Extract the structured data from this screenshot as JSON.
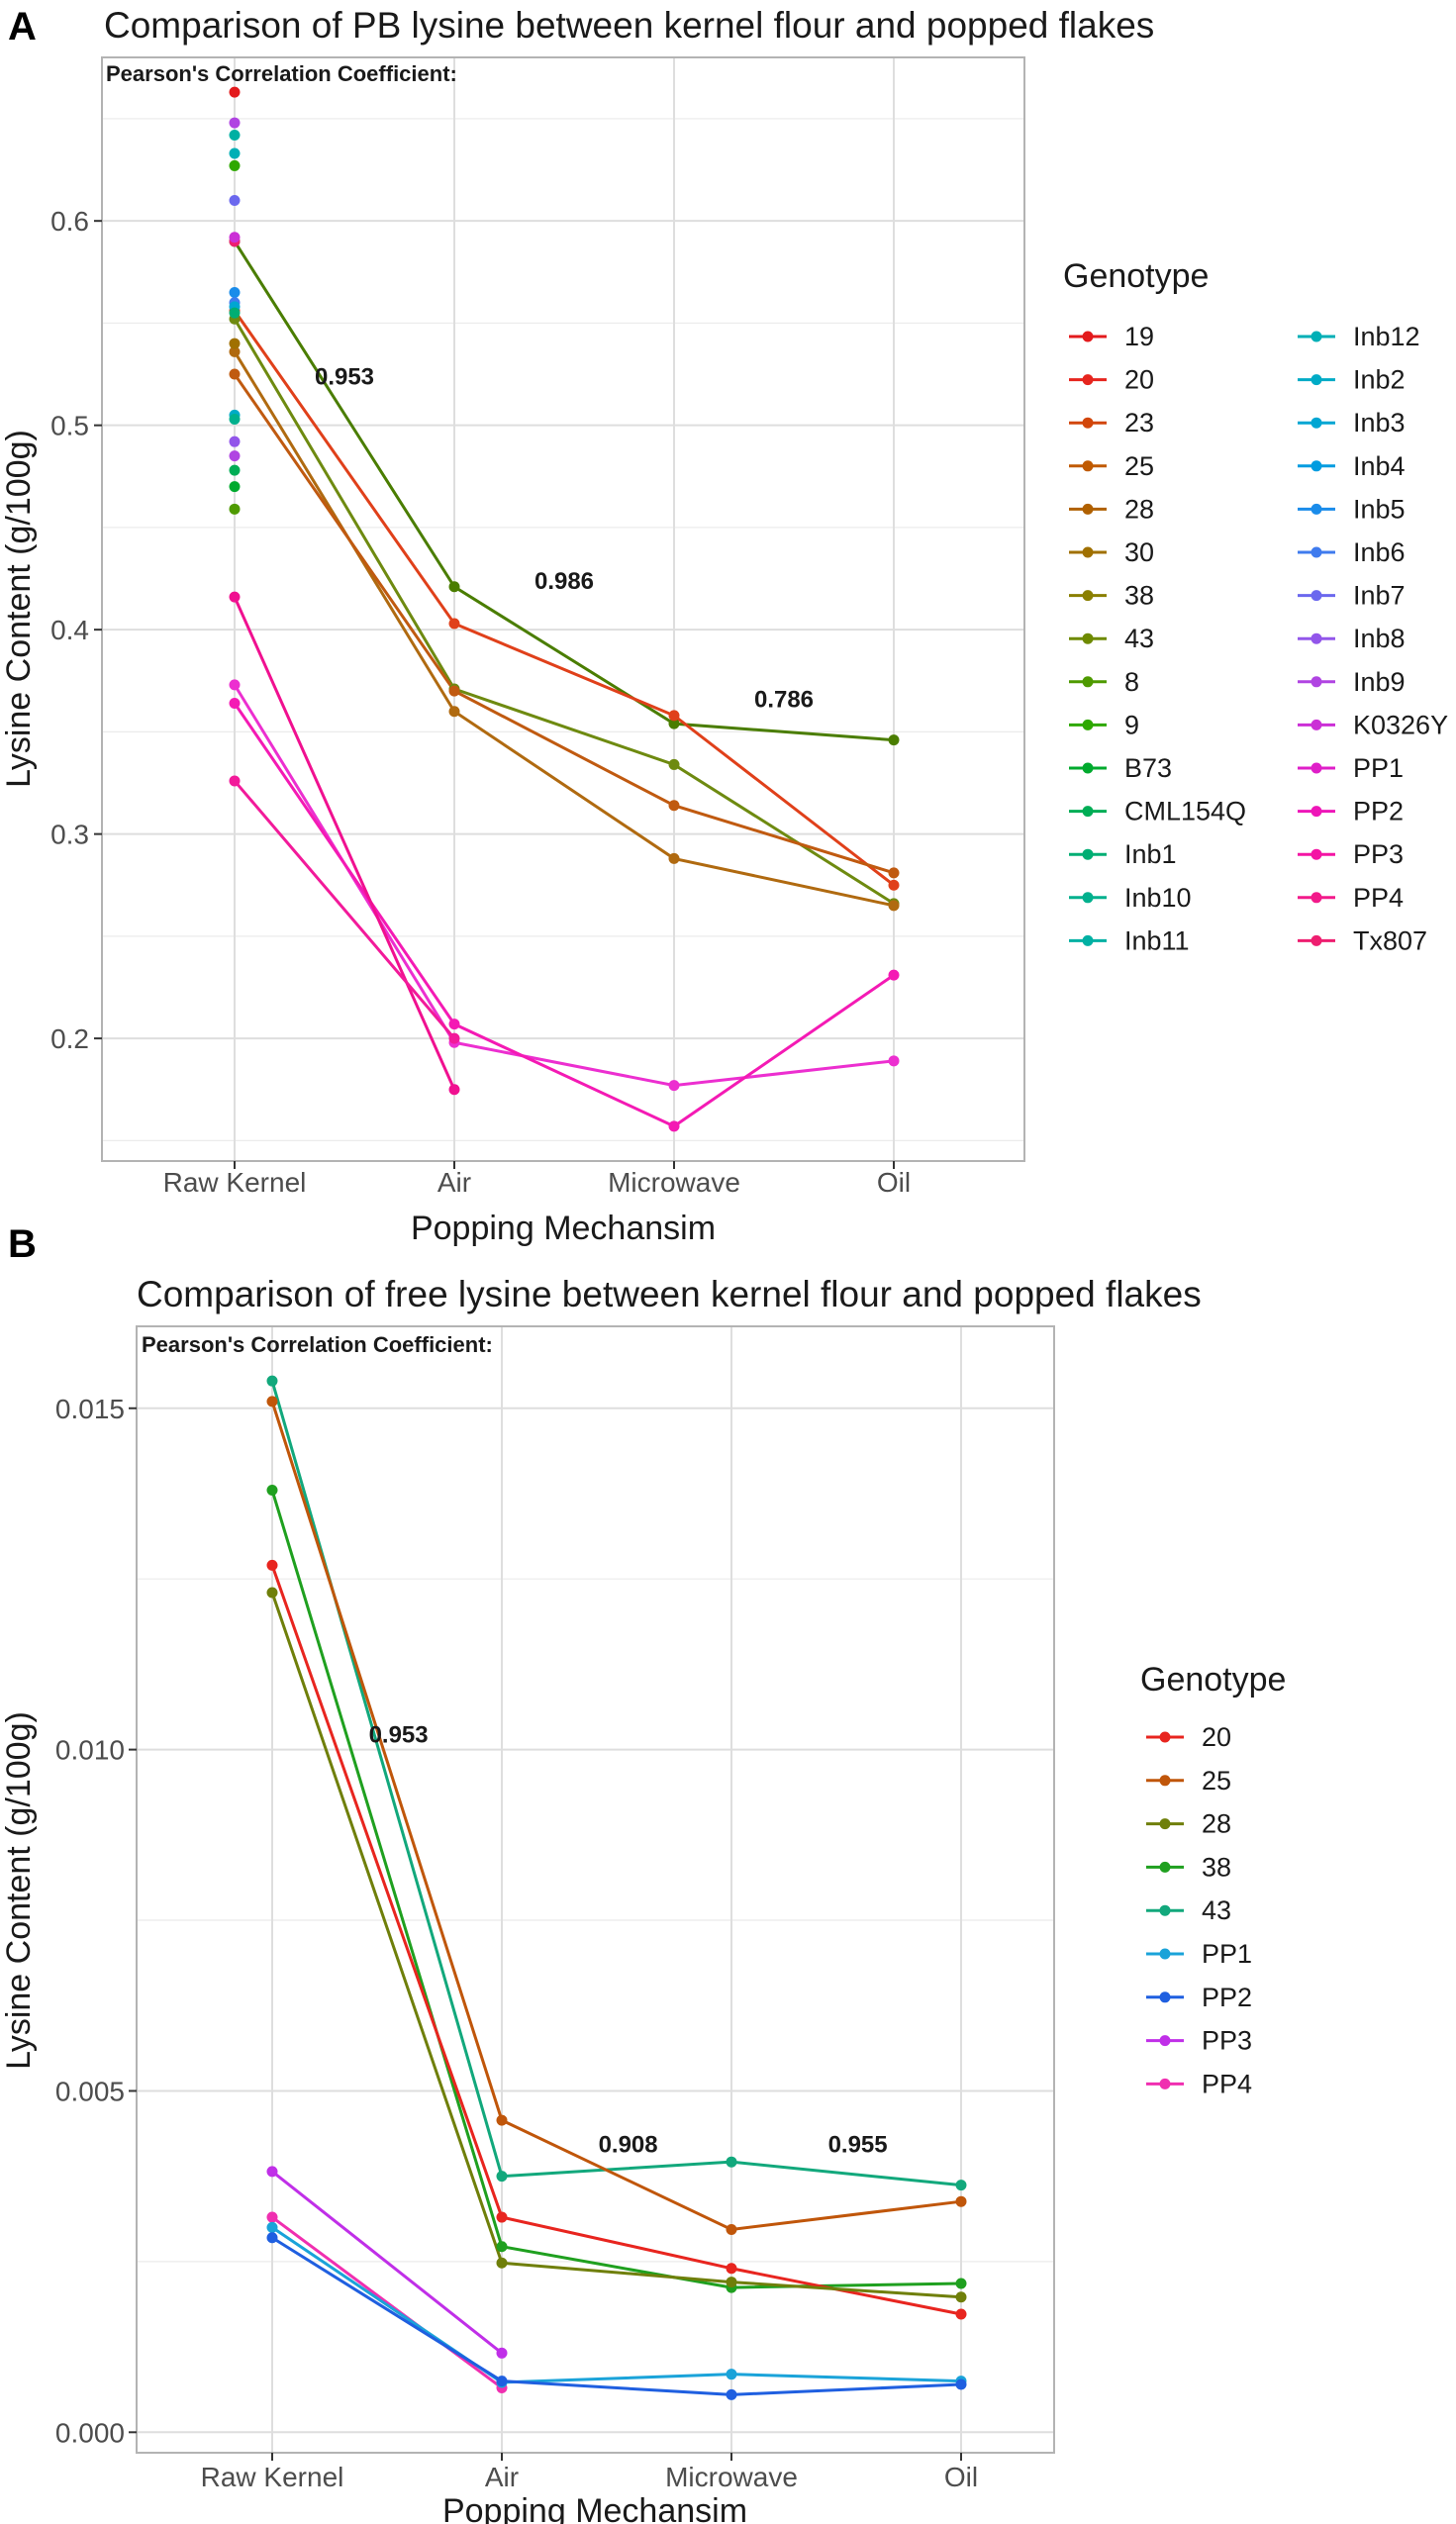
{
  "chart_data": [
    {
      "panel": "A",
      "type": "line",
      "title": "Comparison of PB lysine between kernel flour and popped flakes",
      "xlabel": "Popping Mechansim",
      "ylabel": "Lysine Content (g/100g)",
      "categories": [
        "Raw Kernel",
        "Air",
        "Microwave",
        "Oil"
      ],
      "ylim": [
        0.14,
        0.68
      ],
      "yticks": [
        0.2,
        0.3,
        0.4,
        0.5,
        0.6
      ],
      "ytick_labels": [
        "0.2",
        "0.3",
        "0.4",
        "0.5",
        "0.6"
      ],
      "annotation": "Pearson's Correlation Coefficient:",
      "correlations": [
        {
          "label": "0.953",
          "x": 0.5,
          "y": 0.52
        },
        {
          "label": "0.986",
          "x": 1.5,
          "y": 0.42
        },
        {
          "label": "0.786",
          "x": 2.5,
          "y": 0.362
        }
      ],
      "legend": {
        "title": "Genotype",
        "entries": [
          "19",
          "20",
          "23",
          "25",
          "28",
          "30",
          "38",
          "43",
          "8",
          "9",
          "B73",
          "CML154Q",
          "Inb1",
          "Inb10",
          "Inb11",
          "Inb12",
          "Inb2",
          "Inb3",
          "Inb4",
          "Inb5",
          "Inb6",
          "Inb7",
          "Inb8",
          "Inb9",
          "K0326Y",
          "PP1",
          "PP2",
          "PP3",
          "PP4",
          "Tx807"
        ],
        "colors": [
          "#F8766D",
          "#E7851E",
          "#D69100",
          "#C29A00",
          "#AA9E00",
          "#8FA300",
          "#6FAA00",
          "#3DB000",
          "#00B21F",
          "#00B652",
          "#00B874",
          "#00BA8F",
          "#00BEA6",
          "#00C0BB",
          "#00BFCC",
          "#00BBDA",
          "#00B5E6",
          "#00ADF0",
          "#00A2F8",
          "#1C96FF",
          "#6A8BFF",
          "#9A7CFF",
          "#BE6EFF",
          "#D866FC",
          "#EC62EC",
          "#F863D8",
          "#FC66C2",
          "#FF68AB",
          "#F86C92",
          "#FA7080"
        ],
        "series_colors": [
          "#E31A1C",
          "#E6251E",
          "#D2460A",
          "#C05A00",
          "#B06000",
          "#A07000",
          "#8A7F00",
          "#6E8A00",
          "#4E9A00",
          "#2EA800",
          "#00AA2E",
          "#00AD55",
          "#00AE73",
          "#00B08D",
          "#00B0A3",
          "#00AFB6",
          "#00ABC6",
          "#00A6D3",
          "#009CE0",
          "#1A8CEA",
          "#3F7BEE",
          "#6B68EE",
          "#9256EA",
          "#B044E2",
          "#CB2FD6",
          "#DF1FC8",
          "#EE16B8",
          "#F414A4",
          "#F21A8A",
          "#EE1E70"
        ]
      },
      "points": [
        {
          "genotype": "19",
          "values": [
            0.663
          ]
        },
        {
          "genotype": "Tx807",
          "values": [
            0.59
          ]
        },
        {
          "genotype": "Inb9",
          "values": [
            0.648
          ]
        },
        {
          "genotype": "Inb11",
          "values": [
            0.642
          ]
        },
        {
          "genotype": "Inb12",
          "values": [
            0.633
          ]
        },
        {
          "genotype": "9",
          "values": [
            0.627
          ]
        },
        {
          "genotype": "Inb7",
          "values": [
            0.61
          ]
        },
        {
          "genotype": "K0326Y",
          "values": [
            0.592
          ]
        },
        {
          "genotype": "Inb5",
          "values": [
            0.565
          ]
        },
        {
          "genotype": "Inb6",
          "values": [
            0.56
          ]
        },
        {
          "genotype": "Inb3",
          "values": [
            0.558
          ]
        },
        {
          "genotype": "Inb1",
          "values": [
            0.555
          ]
        },
        {
          "genotype": "30",
          "values": [
            0.54
          ]
        },
        {
          "genotype": "Inb2",
          "values": [
            0.505
          ]
        },
        {
          "genotype": "Inb10",
          "values": [
            0.503
          ]
        },
        {
          "genotype": "Inb8",
          "values": [
            0.492
          ]
        },
        {
          "genotype": "Inb9",
          "values": [
            0.485
          ]
        },
        {
          "genotype": "CML154Q",
          "values": [
            0.478
          ]
        },
        {
          "genotype": "B73",
          "values": [
            0.47
          ]
        },
        {
          "genotype": "8",
          "values": [
            0.459
          ]
        }
      ],
      "series": [
        {
          "name": "43",
          "color": "#4A7D00",
          "values": [
            0.59,
            0.421,
            0.354,
            0.346
          ]
        },
        {
          "name": "20",
          "color": "#E0401A",
          "values": [
            0.556,
            0.403,
            0.358,
            0.275
          ]
        },
        {
          "name": "38",
          "color": "#6E8A10",
          "values": [
            0.552,
            0.371,
            0.334,
            0.266
          ]
        },
        {
          "name": "28",
          "color": "#B06A10",
          "values": [
            0.536,
            0.36,
            0.288,
            0.265
          ]
        },
        {
          "name": "25",
          "color": "#C05A10",
          "values": [
            0.525,
            0.37,
            0.314,
            0.281
          ]
        },
        {
          "name": "PP1",
          "color": "#EC2FD0",
          "values": [
            0.373,
            0.198,
            0.177,
            0.189
          ]
        },
        {
          "name": "PP2",
          "color": "#F41AB4",
          "values": [
            0.364,
            0.207,
            0.157,
            0.231
          ]
        },
        {
          "name": "PP3",
          "color": "#F01090",
          "values": [
            0.416,
            0.175,
            null,
            null
          ]
        },
        {
          "name": "PP4",
          "color": "#F21A9A",
          "values": [
            0.326,
            0.2,
            null,
            null
          ]
        }
      ]
    },
    {
      "panel": "B",
      "type": "line",
      "title": "Comparison of free lysine between kernel flour and popped flakes",
      "xlabel": "Popping Mechansim",
      "ylabel": "Lysine Content (g/100g)",
      "categories": [
        "Raw Kernel",
        "Air",
        "Microwave",
        "Oil"
      ],
      "ylim": [
        -0.0003,
        0.0162
      ],
      "yticks": [
        0.0,
        0.005,
        0.01,
        0.015
      ],
      "ytick_labels": [
        "0.000",
        "0.005",
        "0.010",
        "0.015"
      ],
      "annotation": "Pearson's Correlation Coefficient:",
      "correlations": [
        {
          "label": "0.953",
          "x": 0.55,
          "y": 0.0101
        },
        {
          "label": "0.908",
          "x": 1.55,
          "y": 0.0041
        },
        {
          "label": "0.955",
          "x": 2.55,
          "y": 0.0041
        }
      ],
      "legend": {
        "title": "Genotype",
        "entries": [
          "20",
          "25",
          "28",
          "38",
          "43",
          "PP1",
          "PP2",
          "PP3",
          "PP4"
        ],
        "colors": [
          "#E8251F",
          "#C0560A",
          "#6F7F0A",
          "#1FA01F",
          "#12A87C",
          "#1AA3D9",
          "#1F5FE0",
          "#C02FE8",
          "#F02FB0"
        ]
      },
      "series": [
        {
          "name": "43",
          "color": "#12A87C",
          "values": [
            0.0154,
            0.00375,
            0.00396,
            0.00362
          ]
        },
        {
          "name": "25",
          "color": "#C0560A",
          "values": [
            0.0151,
            0.00457,
            0.00297,
            0.00338
          ]
        },
        {
          "name": "38",
          "color": "#1FA01F",
          "values": [
            0.0138,
            0.00272,
            0.00212,
            0.00218
          ]
        },
        {
          "name": "20",
          "color": "#E8251F",
          "values": [
            0.0127,
            0.00315,
            0.0024,
            0.00173
          ]
        },
        {
          "name": "28",
          "color": "#6F7F0A",
          "values": [
            0.0123,
            0.00248,
            0.0022,
            0.00198
          ]
        },
        {
          "name": "PP3",
          "color": "#C02FE8",
          "values": [
            0.00382,
            0.00116,
            null,
            null
          ]
        },
        {
          "name": "PP4",
          "color": "#F02FB0",
          "values": [
            0.00315,
            0.00065,
            null,
            null
          ]
        },
        {
          "name": "PP1",
          "color": "#1AA3D9",
          "values": [
            0.003,
            0.00073,
            0.00085,
            0.00075
          ]
        },
        {
          "name": "PP2",
          "color": "#1F5FE0",
          "values": [
            0.00285,
            0.00075,
            0.00055,
            0.0007
          ]
        }
      ]
    }
  ]
}
